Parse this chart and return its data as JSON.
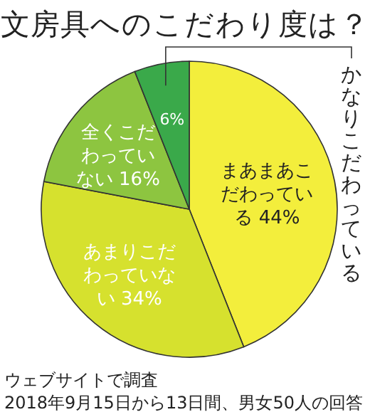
{
  "chart_data": {
    "type": "pie",
    "title": "文房具へのこだわり度は？",
    "categories": [
      "まあまあこだわっている",
      "あまりこだわっていない",
      "全くこだわっていない",
      "かなりこだわっている"
    ],
    "values": [
      44,
      34,
      16,
      6
    ],
    "value_labels": [
      "44%",
      "34%",
      "16%",
      "6%"
    ],
    "colors": [
      "#f3ee3c",
      "#d6e12e",
      "#8dc540",
      "#3aa94a"
    ],
    "annotations": [
      "ウェブサイトで調査",
      "2018年9月15日から13日間、男女50人の回答"
    ]
  }
}
